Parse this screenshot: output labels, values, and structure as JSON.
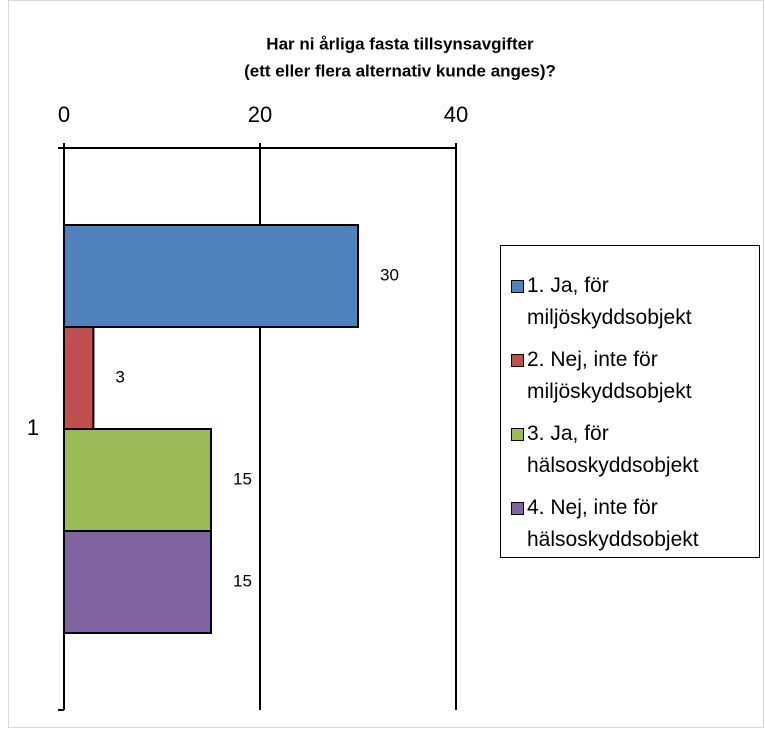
{
  "chart_data": {
    "type": "bar",
    "orientation": "horizontal",
    "title": [
      "Har ni årliga fasta tillsynsavgifter",
      "(ett eller flera alternativ kunde anges)?"
    ],
    "categories": [
      "1"
    ],
    "series": [
      {
        "name": "1. Ja, för miljöskyddsobjekt",
        "color": "#4f81bd",
        "values": [
          30
        ]
      },
      {
        "name": "2. Nej, inte för miljöskyddsobjekt",
        "color": "#c0504d",
        "values": [
          3
        ]
      },
      {
        "name": "3. Ja, för hälsoskyddsobjekt",
        "color": "#9bbb59",
        "values": [
          15
        ]
      },
      {
        "name": "4. Nej, inte för hälsoskyddsobjekt",
        "color": "#8064a2",
        "values": [
          15
        ]
      }
    ],
    "xlim": [
      0,
      40
    ],
    "xticks": [
      0,
      20,
      40
    ],
    "grid": true,
    "legend": "right"
  }
}
